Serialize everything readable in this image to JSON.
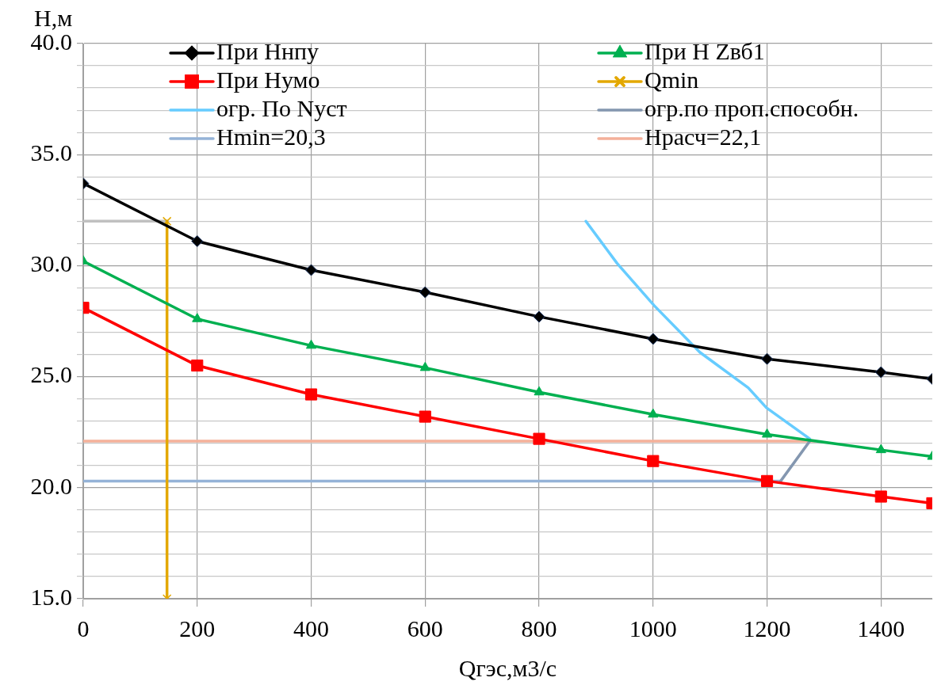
{
  "chart_data": {
    "type": "line",
    "xlabel": "Qгэс,м3/с",
    "ylabel": "Н,м",
    "xlim": [
      0,
      1490
    ],
    "xticks": [
      0,
      200,
      400,
      600,
      800,
      1000,
      1200,
      1400
    ],
    "ylim": [
      15,
      40
    ],
    "yticks": [
      {
        "value": 15,
        "label": "15.0"
      },
      {
        "value": 16,
        "label": null
      },
      {
        "value": 17,
        "label": null
      },
      {
        "value": 18,
        "label": null
      },
      {
        "value": 19,
        "label": null
      },
      {
        "value": 20,
        "label": "20.0"
      },
      {
        "value": 21,
        "label": null
      },
      {
        "value": 22,
        "label": null
      },
      {
        "value": 23,
        "label": null
      },
      {
        "value": 24,
        "label": null
      },
      {
        "value": 25,
        "label": "25.0"
      },
      {
        "value": 26,
        "label": null
      },
      {
        "value": 27,
        "label": null
      },
      {
        "value": 28,
        "label": null
      },
      {
        "value": 29,
        "label": null
      },
      {
        "value": 30,
        "label": "30.0"
      },
      {
        "value": 31,
        "label": null
      },
      {
        "value": 32,
        "label": null
      },
      {
        "value": 33,
        "label": null
      },
      {
        "value": 34,
        "label": null
      },
      {
        "value": 35,
        "label": "35.0"
      },
      {
        "value": 36,
        "label": null
      },
      {
        "value": 37,
        "label": null
      },
      {
        "value": 38,
        "label": null
      },
      {
        "value": 39,
        "label": null
      },
      {
        "value": 40,
        "label": "40.0"
      }
    ],
    "grid": true,
    "legend": "top",
    "line_style": "solid",
    "series": [
      {
        "name": "При Ннпу",
        "color": "#000000",
        "marker": "diamond",
        "x": [
          0,
          200,
          400,
          600,
          800,
          1000,
          1200,
          1400,
          1490
        ],
        "values": [
          33.7,
          31.1,
          29.8,
          28.8,
          27.7,
          26.7,
          25.8,
          25.2,
          24.9
        ]
      },
      {
        "name": "При Н Zвб1",
        "color": "#00b050",
        "marker": "triangle",
        "x": [
          0,
          200,
          400,
          600,
          800,
          1000,
          1200,
          1400,
          1490
        ],
        "values": [
          30.2,
          27.6,
          26.4,
          25.4,
          24.3,
          23.3,
          22.4,
          21.7,
          21.4
        ]
      },
      {
        "name": "При Нумо",
        "color": "#ff0000",
        "marker": "square",
        "x": [
          0,
          200,
          400,
          600,
          800,
          1000,
          1200,
          1400,
          1490
        ],
        "values": [
          28.1,
          25.5,
          24.2,
          23.2,
          22.2,
          21.2,
          20.3,
          19.6,
          19.3
        ]
      },
      {
        "name": "Qmin",
        "color": "#e3a800",
        "marker": "cross",
        "x": [
          147,
          147
        ],
        "values": [
          32,
          15
        ]
      },
      {
        "name": "огр. По Nуст",
        "color": "#66ccff",
        "marker": "none",
        "x": [
          882,
          937,
          1002,
          1082,
          1167,
          1199,
          1275
        ],
        "values": [
          32,
          30.1,
          28.2,
          26.1,
          24.5,
          23.6,
          22.2
        ]
      },
      {
        "name": "огр.по проп.способн.",
        "color": "#8497b0",
        "marker": "none",
        "x": [
          1224,
          1275
        ],
        "values": [
          20.3,
          22.1
        ]
      },
      {
        "name": "Hmin=20,3",
        "color": "#95b3d7",
        "marker": "none",
        "x": [
          0,
          1224
        ],
        "values": [
          20.3,
          20.3
        ]
      },
      {
        "name": "Нрасч=22,1",
        "color": "#f4b09a",
        "marker": "none",
        "x": [
          0,
          1284
        ],
        "values": [
          22.1,
          22.1
        ]
      },
      {
        "color": "#c0c0c0",
        "marker": "none",
        "x": [
          0,
          147
        ],
        "values": [
          32,
          32
        ]
      }
    ]
  }
}
